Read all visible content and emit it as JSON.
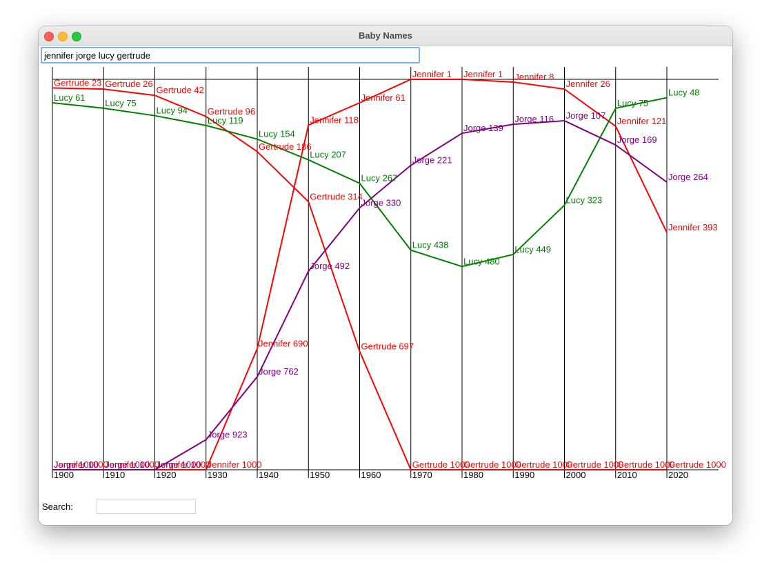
{
  "window": {
    "title": "Baby Names",
    "query": "jennifer jorge lucy gertrude",
    "search_label": "Search:",
    "search_value": ""
  },
  "chart_data": {
    "type": "line",
    "x": [
      1900,
      1910,
      1920,
      1930,
      1940,
      1950,
      1960,
      1970,
      1980,
      1990,
      2000,
      2010,
      2020
    ],
    "tick_labels": [
      "1900",
      "1910",
      "1920",
      "1930",
      "1940",
      "1950",
      "1960",
      "1970",
      "1980",
      "1990",
      "2000",
      "2010",
      "2020"
    ],
    "ylim": [
      1,
      1000
    ],
    "y_inverted": true,
    "grid": "vertical lines at each decade",
    "series": [
      {
        "name": "Gertrude",
        "color": "#ff0000",
        "values": [
          23,
          26,
          42,
          96,
          186,
          314,
          697,
          1000,
          1000,
          1000,
          1000,
          1000,
          1000
        ]
      },
      {
        "name": "Jennifer",
        "color": "#ff0000",
        "values": [
          1000,
          1000,
          1000,
          1000,
          690,
          118,
          61,
          1,
          1,
          8,
          26,
          121,
          393
        ]
      },
      {
        "name": "Lucy",
        "color": "#008000",
        "values": [
          61,
          75,
          94,
          119,
          154,
          207,
          267,
          438,
          480,
          449,
          323,
          75,
          48
        ]
      },
      {
        "name": "Jorge",
        "color": "#800080",
        "values": [
          1000,
          1000,
          1000,
          923,
          762,
          492,
          330,
          221,
          139,
          116,
          107,
          169,
          264
        ]
      }
    ]
  }
}
